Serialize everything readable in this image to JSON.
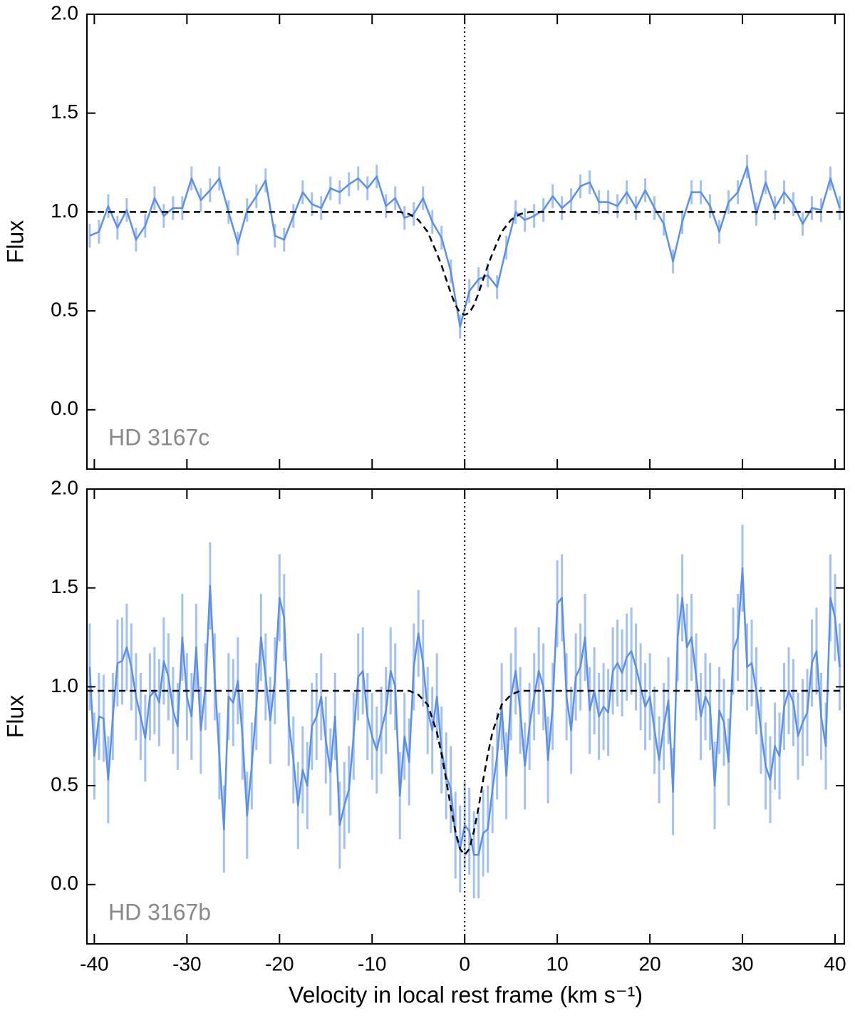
{
  "chart_data": [
    {
      "type": "line",
      "y_label": "Flux",
      "annotation": "HD 3167c",
      "xlim": [
        -40.8,
        41
      ],
      "ylim": [
        -0.3,
        2.0
      ],
      "xticks": [
        -40,
        -30,
        -20,
        -10,
        0,
        10,
        20,
        30,
        40
      ],
      "xticklabels": false,
      "yticks": [
        {
          "value": 0,
          "label": "0.0"
        },
        0.5,
        {
          "value": 1,
          "label": "1.0"
        },
        1.5,
        {
          "value": 2,
          "label": "2.0"
        }
      ],
      "vline": 0,
      "series": [
        {
          "name": "HD 3167c data",
          "color": "#5b8fe8",
          "error_color": "#a3c2f2",
          "error": 0.06,
          "x": [
            -40.5,
            -39.5,
            -38.5,
            -37.5,
            -36.5,
            -35.5,
            -34.5,
            -33.5,
            -32.5,
            -31.5,
            -30.5,
            -29.5,
            -28.5,
            -27.5,
            -26.5,
            -25.5,
            -24.5,
            -23.5,
            -22.5,
            -21.5,
            -20.5,
            -19.5,
            -18.5,
            -17.5,
            -16.5,
            -15.5,
            -14.5,
            -13.5,
            -12.5,
            -11.5,
            -10.5,
            -9.5,
            -8.5,
            -7.5,
            -6.5,
            -5.5,
            -4.5,
            -3.5,
            -2.5,
            -1.5,
            -0.5,
            0.5,
            1.5,
            2.5,
            3.5,
            4.5,
            5.5,
            6.5,
            7.5,
            8.5,
            9.5,
            10.5,
            11.5,
            12.5,
            13.5,
            14.5,
            15.5,
            16.5,
            17.5,
            18.5,
            19.5,
            20.5,
            21.5,
            22.5,
            23.5,
            24.5,
            25.5,
            26.5,
            27.5,
            28.5,
            29.5,
            30.5,
            31.5,
            32.5,
            33.5,
            34.5,
            35.5,
            36.5,
            37.5,
            38.5,
            39.5,
            40.5
          ],
          "values": [
            0.88,
            0.9,
            1.03,
            0.92,
            1.01,
            0.86,
            0.93,
            1.07,
            0.98,
            1.02,
            1.02,
            1.17,
            1.06,
            1.11,
            1.17,
            1.0,
            0.84,
            1.01,
            1.08,
            1.16,
            0.88,
            0.86,
            0.98,
            1.1,
            1.04,
            1.02,
            1.12,
            1.1,
            1.14,
            1.17,
            1.12,
            1.18,
            1.03,
            1.07,
            0.97,
            0.99,
            1.07,
            0.95,
            0.87,
            0.7,
            0.42,
            0.6,
            0.66,
            0.68,
            0.62,
            0.82,
            1.0,
            0.96,
            0.98,
            1.01,
            1.08,
            1.02,
            1.06,
            1.13,
            1.15,
            1.05,
            1.05,
            1.03,
            1.1,
            1.02,
            1.11,
            1.02,
            0.94,
            0.75,
            0.95,
            1.1,
            1.1,
            1.03,
            0.9,
            1.05,
            1.1,
            1.23,
            0.99,
            1.15,
            1.02,
            1.1,
            1.04,
            0.94,
            1.02,
            1.01,
            1.17,
            1.02
          ]
        },
        {
          "name": "HD 3167c model",
          "color": "#000000",
          "dashed": true,
          "x": [
            -40.8,
            -8,
            -7,
            -6,
            -5,
            -4,
            -3,
            -2.5,
            -2,
            -1.5,
            -1,
            -0.5,
            0,
            0.5,
            1,
            1.5,
            2,
            2.5,
            3,
            4,
            5,
            6,
            7,
            8,
            41
          ],
          "values": [
            1,
            1,
            1,
            0.99,
            0.96,
            0.9,
            0.79,
            0.73,
            0.66,
            0.59,
            0.53,
            0.49,
            0.48,
            0.49,
            0.53,
            0.59,
            0.66,
            0.73,
            0.79,
            0.9,
            0.96,
            0.99,
            1,
            1,
            1
          ]
        }
      ]
    },
    {
      "type": "line",
      "y_label": "Flux",
      "annotation": "HD 3167b",
      "x_label": "Velocity in local rest frame (km s⁻¹)",
      "xlim": [
        -40.8,
        41
      ],
      "ylim": [
        -0.3,
        2.0
      ],
      "xticks": [
        -40,
        -30,
        -20,
        -10,
        0,
        10,
        20,
        30,
        40
      ],
      "xticklabels": true,
      "yticks": [
        {
          "value": 0,
          "label": "0.0"
        },
        0.5,
        {
          "value": 1,
          "label": "1.0"
        },
        1.5,
        {
          "value": 2,
          "label": "2.0"
        }
      ],
      "vline": 0,
      "series": [
        {
          "name": "HD 3167b data",
          "color": "#5b8fe8",
          "error_color": "#a3c2f2",
          "error": 0.22,
          "x": [
            -40.5,
            -40,
            -39.5,
            -39,
            -38.5,
            -38,
            -37.5,
            -37,
            -36.5,
            -36,
            -35.5,
            -35,
            -34.5,
            -34,
            -33.5,
            -33,
            -32.5,
            -32,
            -31.5,
            -31,
            -30.5,
            -30,
            -29.5,
            -29,
            -28.5,
            -28,
            -27.5,
            -27,
            -26.5,
            -26,
            -25.5,
            -25,
            -24.5,
            -24,
            -23.5,
            -23,
            -22.5,
            -22,
            -21.5,
            -21,
            -20.5,
            -20,
            -19.5,
            -19,
            -18.5,
            -18,
            -17.5,
            -17,
            -16.5,
            -16,
            -15.5,
            -15,
            -14.5,
            -14,
            -13.5,
            -13,
            -12.5,
            -12,
            -11.5,
            -11,
            -10.5,
            -10,
            -9.5,
            -9,
            -8.5,
            -8,
            -7.5,
            -7,
            -6.5,
            -6,
            -5.5,
            -5,
            -4.5,
            -4,
            -3.5,
            -3,
            -2.5,
            -2,
            -1.5,
            -1,
            -0.5,
            0,
            0.5,
            1,
            1.5,
            2,
            2.5,
            3,
            3.5,
            4,
            4.5,
            5,
            5.5,
            6,
            6.5,
            7,
            7.5,
            8,
            8.5,
            9,
            9.5,
            10,
            10.5,
            11,
            11.5,
            12,
            12.5,
            13,
            13.5,
            14,
            14.5,
            15,
            15.5,
            16,
            16.5,
            17,
            17.5,
            18,
            18.5,
            19,
            19.5,
            20,
            20.5,
            21,
            21.5,
            22,
            22.5,
            23,
            23.5,
            24,
            24.5,
            25,
            25.5,
            26,
            26.5,
            27,
            27.5,
            28,
            28.5,
            29,
            29.5,
            30,
            30.5,
            31,
            31.5,
            32,
            32.5,
            33,
            33.5,
            34,
            34.5,
            35,
            35.5,
            36,
            36.5,
            37,
            37.5,
            38,
            38.5,
            39,
            39.5,
            40,
            40.5
          ],
          "values": [
            1.1,
            0.65,
            0.85,
            0.84,
            0.53,
            0.85,
            1.12,
            1.13,
            1.2,
            1.1,
            0.95,
            0.85,
            0.74,
            0.95,
            0.98,
            0.92,
            1.13,
            1.05,
            0.88,
            0.8,
            1.25,
            0.95,
            0.85,
            1.2,
            0.78,
            1.0,
            1.51,
            1.05,
            0.65,
            0.28,
            0.95,
            0.92,
            1.03,
            0.75,
            0.35,
            0.6,
            0.9,
            1.25,
            1.05,
            0.83,
            1.03,
            1.45,
            1.35,
            0.82,
            0.63,
            0.4,
            0.58,
            0.5,
            0.8,
            0.85,
            0.95,
            0.73,
            0.57,
            0.85,
            0.3,
            0.4,
            0.48,
            0.75,
            1.05,
            1.08,
            0.85,
            0.75,
            0.68,
            0.78,
            0.88,
            1.08,
            1.0,
            0.45,
            0.75,
            0.62,
            1.1,
            1.27,
            1.12,
            0.88,
            0.78,
            0.95,
            0.68,
            0.55,
            0.48,
            0.25,
            0.18,
            0.3,
            0.27,
            0.15,
            0.15,
            0.26,
            0.28,
            0.48,
            0.65,
            0.9,
            0.55,
            0.95,
            1.08,
            0.88,
            0.6,
            0.8,
            0.95,
            1.08,
            1.0,
            0.63,
            0.9,
            1.42,
            1.45,
            0.95,
            0.78,
            1.05,
            1.1,
            1.25,
            0.88,
            0.98,
            0.85,
            0.9,
            0.87,
            1.08,
            1.12,
            1.07,
            1.15,
            1.18,
            1.1,
            1.0,
            0.9,
            0.95,
            0.78,
            0.63,
            0.8,
            0.93,
            0.47,
            1.25,
            1.45,
            1.2,
            1.25,
            1.05,
            0.85,
            0.95,
            0.9,
            0.5,
            0.88,
            0.82,
            0.62,
            1.18,
            1.25,
            1.6,
            1.1,
            1.12,
            0.98,
            0.78,
            0.6,
            0.53,
            0.7,
            0.65,
            0.9,
            0.98,
            0.92,
            0.75,
            0.82,
            0.87,
            1.12,
            1.18,
            0.85,
            0.7,
            1.45,
            1.35,
            1.1
          ]
        },
        {
          "name": "HD 3167b model",
          "color": "#000000",
          "dashed": true,
          "x": [
            -40.8,
            -8,
            -7,
            -6,
            -5,
            -4,
            -3,
            -2.5,
            -2,
            -1.5,
            -1,
            -0.5,
            0,
            0.5,
            1,
            1.5,
            2,
            2.5,
            3,
            4,
            5,
            6,
            7,
            8,
            41
          ],
          "values": [
            0.98,
            0.98,
            0.98,
            0.98,
            0.96,
            0.91,
            0.77,
            0.66,
            0.53,
            0.39,
            0.27,
            0.18,
            0.15,
            0.18,
            0.27,
            0.39,
            0.53,
            0.66,
            0.77,
            0.91,
            0.96,
            0.98,
            0.98,
            0.98,
            0.98
          ]
        }
      ]
    }
  ]
}
